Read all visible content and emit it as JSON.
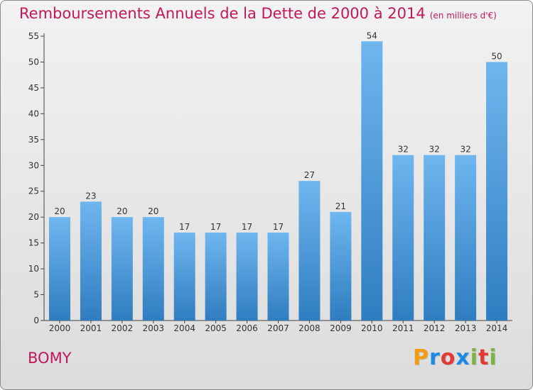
{
  "title": "Remboursements Annuels de la Dette de 2000 à 2014",
  "subtitle": "(en milliers d'€)",
  "commune": "BOMY",
  "brand": {
    "text": "Proxiti",
    "letters": [
      "P",
      "r",
      "o",
      "x",
      "i",
      "t",
      "i"
    ],
    "colors": [
      "#f39c12",
      "#1e88e5",
      "#e53935",
      "#1e88e5",
      "#7cb342",
      "#e53935",
      "#7cb342"
    ]
  },
  "colors": {
    "title": "#c2185b",
    "bar_top": "#6fb6ef",
    "bar_bottom": "#2f7dc0"
  },
  "chart_data": {
    "type": "bar",
    "title": "Remboursements Annuels de la Dette de 2000 à 2014",
    "subtitle": "(en milliers d'€)",
    "categories": [
      "2000",
      "2001",
      "2002",
      "2003",
      "2004",
      "2005",
      "2006",
      "2007",
      "2008",
      "2009",
      "2010",
      "2011",
      "2012",
      "2013",
      "2014"
    ],
    "values": [
      20,
      23,
      20,
      20,
      17,
      17,
      17,
      17,
      27,
      21,
      54,
      32,
      32,
      32,
      50
    ],
    "ylim": [
      0,
      55
    ],
    "yticks": [
      0,
      5,
      10,
      15,
      20,
      25,
      30,
      35,
      40,
      45,
      50,
      55
    ],
    "grid": false,
    "data_labels": true
  }
}
